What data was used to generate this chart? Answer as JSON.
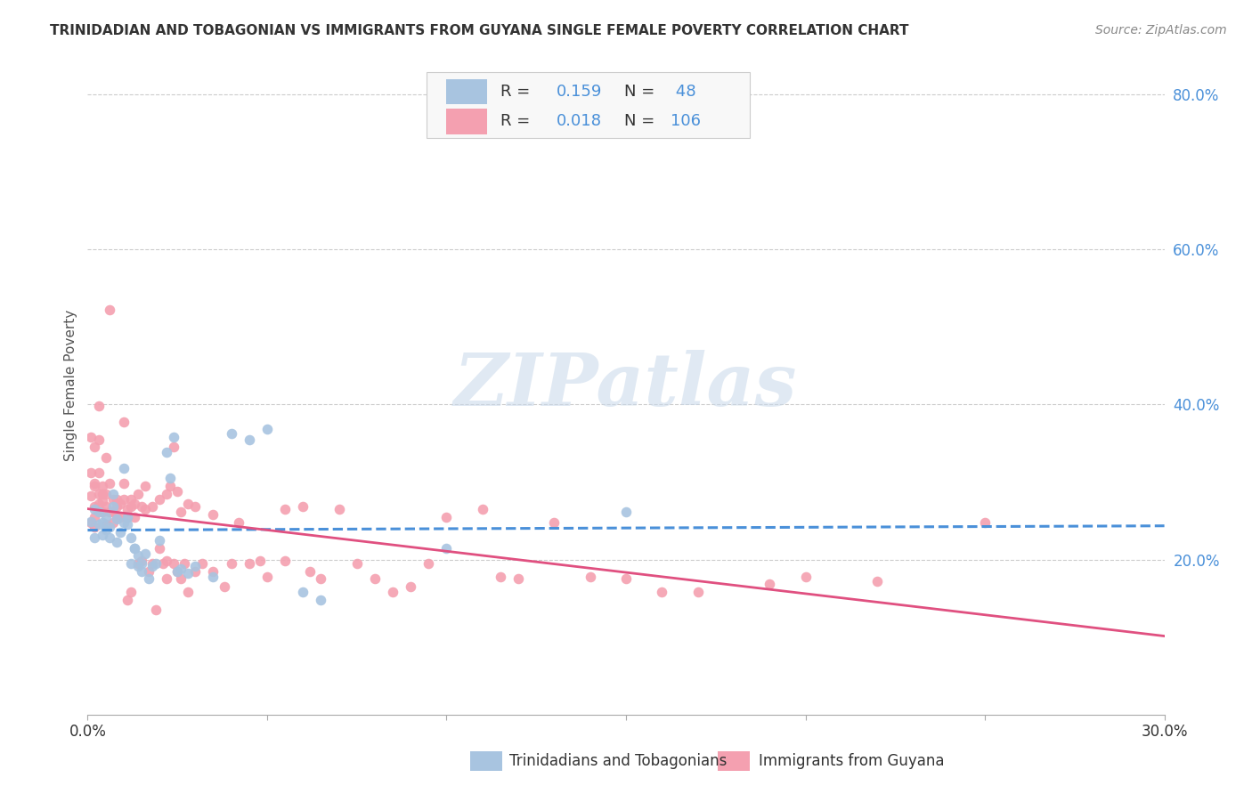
{
  "title": "TRINIDADIAN AND TOBAGONIAN VS IMMIGRANTS FROM GUYANA SINGLE FEMALE POVERTY CORRELATION CHART",
  "source": "Source: ZipAtlas.com",
  "ylabel": "Single Female Poverty",
  "xlim": [
    0.0,
    0.3
  ],
  "ylim": [
    0.0,
    0.85
  ],
  "xticks": [
    0.0,
    0.05,
    0.1,
    0.15,
    0.2,
    0.25,
    0.3
  ],
  "xticklabels": [
    "0.0%",
    "",
    "",
    "",
    "",
    "",
    "30.0%"
  ],
  "yticks_right": [
    0.2,
    0.4,
    0.6,
    0.8
  ],
  "ytick_right_labels": [
    "20.0%",
    "40.0%",
    "60.0%",
    "80.0%"
  ],
  "color_blue": "#a8c4e0",
  "color_pink": "#f4a0b0",
  "trendline_blue": "#4a90d9",
  "trendline_pink": "#e05080",
  "watermark": "ZIPatlas",
  "blue_scatter": [
    [
      0.001,
      0.249
    ],
    [
      0.002,
      0.265
    ],
    [
      0.002,
      0.228
    ],
    [
      0.003,
      0.245
    ],
    [
      0.003,
      0.262
    ],
    [
      0.004,
      0.232
    ],
    [
      0.004,
      0.248
    ],
    [
      0.005,
      0.255
    ],
    [
      0.005,
      0.238
    ],
    [
      0.006,
      0.228
    ],
    [
      0.006,
      0.242
    ],
    [
      0.007,
      0.268
    ],
    [
      0.007,
      0.285
    ],
    [
      0.008,
      0.252
    ],
    [
      0.008,
      0.222
    ],
    [
      0.009,
      0.235
    ],
    [
      0.01,
      0.248
    ],
    [
      0.01,
      0.318
    ],
    [
      0.011,
      0.255
    ],
    [
      0.011,
      0.245
    ],
    [
      0.012,
      0.228
    ],
    [
      0.012,
      0.195
    ],
    [
      0.013,
      0.215
    ],
    [
      0.013,
      0.215
    ],
    [
      0.014,
      0.205
    ],
    [
      0.014,
      0.192
    ],
    [
      0.015,
      0.195
    ],
    [
      0.015,
      0.185
    ],
    [
      0.016,
      0.208
    ],
    [
      0.017,
      0.175
    ],
    [
      0.018,
      0.192
    ],
    [
      0.019,
      0.195
    ],
    [
      0.02,
      0.225
    ],
    [
      0.022,
      0.338
    ],
    [
      0.023,
      0.305
    ],
    [
      0.024,
      0.358
    ],
    [
      0.025,
      0.185
    ],
    [
      0.026,
      0.188
    ],
    [
      0.028,
      0.182
    ],
    [
      0.03,
      0.192
    ],
    [
      0.035,
      0.178
    ],
    [
      0.04,
      0.362
    ],
    [
      0.045,
      0.355
    ],
    [
      0.05,
      0.368
    ],
    [
      0.06,
      0.158
    ],
    [
      0.065,
      0.148
    ],
    [
      0.1,
      0.215
    ],
    [
      0.15,
      0.262
    ]
  ],
  "pink_scatter": [
    [
      0.001,
      0.248
    ],
    [
      0.001,
      0.282
    ],
    [
      0.001,
      0.312
    ],
    [
      0.001,
      0.358
    ],
    [
      0.002,
      0.255
    ],
    [
      0.002,
      0.295
    ],
    [
      0.002,
      0.345
    ],
    [
      0.002,
      0.298
    ],
    [
      0.002,
      0.268
    ],
    [
      0.002,
      0.242
    ],
    [
      0.003,
      0.272
    ],
    [
      0.003,
      0.285
    ],
    [
      0.003,
      0.398
    ],
    [
      0.003,
      0.355
    ],
    [
      0.003,
      0.312
    ],
    [
      0.004,
      0.295
    ],
    [
      0.004,
      0.275
    ],
    [
      0.004,
      0.285
    ],
    [
      0.004,
      0.262
    ],
    [
      0.005,
      0.332
    ],
    [
      0.005,
      0.285
    ],
    [
      0.005,
      0.268
    ],
    [
      0.005,
      0.245
    ],
    [
      0.006,
      0.522
    ],
    [
      0.006,
      0.298
    ],
    [
      0.006,
      0.262
    ],
    [
      0.007,
      0.278
    ],
    [
      0.007,
      0.262
    ],
    [
      0.007,
      0.248
    ],
    [
      0.008,
      0.268
    ],
    [
      0.008,
      0.278
    ],
    [
      0.008,
      0.255
    ],
    [
      0.009,
      0.272
    ],
    [
      0.009,
      0.255
    ],
    [
      0.01,
      0.378
    ],
    [
      0.01,
      0.298
    ],
    [
      0.01,
      0.278
    ],
    [
      0.011,
      0.265
    ],
    [
      0.011,
      0.255
    ],
    [
      0.011,
      0.148
    ],
    [
      0.012,
      0.278
    ],
    [
      0.012,
      0.268
    ],
    [
      0.012,
      0.158
    ],
    [
      0.013,
      0.272
    ],
    [
      0.013,
      0.255
    ],
    [
      0.014,
      0.285
    ],
    [
      0.014,
      0.195
    ],
    [
      0.015,
      0.268
    ],
    [
      0.015,
      0.198
    ],
    [
      0.016,
      0.295
    ],
    [
      0.016,
      0.265
    ],
    [
      0.017,
      0.185
    ],
    [
      0.018,
      0.268
    ],
    [
      0.018,
      0.195
    ],
    [
      0.019,
      0.135
    ],
    [
      0.02,
      0.278
    ],
    [
      0.02,
      0.215
    ],
    [
      0.021,
      0.195
    ],
    [
      0.022,
      0.285
    ],
    [
      0.022,
      0.198
    ],
    [
      0.022,
      0.175
    ],
    [
      0.023,
      0.295
    ],
    [
      0.024,
      0.345
    ],
    [
      0.024,
      0.195
    ],
    [
      0.025,
      0.288
    ],
    [
      0.025,
      0.185
    ],
    [
      0.026,
      0.262
    ],
    [
      0.026,
      0.175
    ],
    [
      0.027,
      0.195
    ],
    [
      0.028,
      0.272
    ],
    [
      0.028,
      0.158
    ],
    [
      0.03,
      0.268
    ],
    [
      0.03,
      0.185
    ],
    [
      0.032,
      0.195
    ],
    [
      0.035,
      0.258
    ],
    [
      0.035,
      0.185
    ],
    [
      0.038,
      0.165
    ],
    [
      0.04,
      0.195
    ],
    [
      0.042,
      0.248
    ],
    [
      0.045,
      0.195
    ],
    [
      0.048,
      0.198
    ],
    [
      0.05,
      0.178
    ],
    [
      0.055,
      0.265
    ],
    [
      0.055,
      0.198
    ],
    [
      0.06,
      0.268
    ],
    [
      0.062,
      0.185
    ],
    [
      0.065,
      0.175
    ],
    [
      0.07,
      0.265
    ],
    [
      0.075,
      0.195
    ],
    [
      0.08,
      0.175
    ],
    [
      0.085,
      0.158
    ],
    [
      0.09,
      0.165
    ],
    [
      0.095,
      0.195
    ],
    [
      0.1,
      0.255
    ],
    [
      0.11,
      0.265
    ],
    [
      0.115,
      0.178
    ],
    [
      0.12,
      0.175
    ],
    [
      0.13,
      0.248
    ],
    [
      0.14,
      0.178
    ],
    [
      0.15,
      0.175
    ],
    [
      0.16,
      0.158
    ],
    [
      0.17,
      0.158
    ],
    [
      0.19,
      0.168
    ],
    [
      0.2,
      0.178
    ],
    [
      0.22,
      0.172
    ],
    [
      0.25,
      0.248
    ]
  ]
}
